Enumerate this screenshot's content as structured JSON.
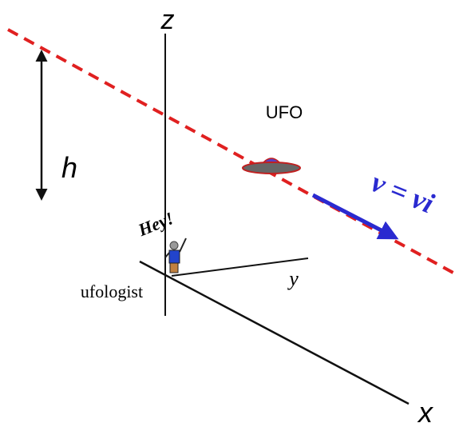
{
  "labels": {
    "z": "z",
    "h": "h",
    "ufo": "UFO",
    "velocity": "v = νi",
    "hey": "Hey!",
    "ufologist": "ufologist",
    "y": "y",
    "x": "x"
  }
}
